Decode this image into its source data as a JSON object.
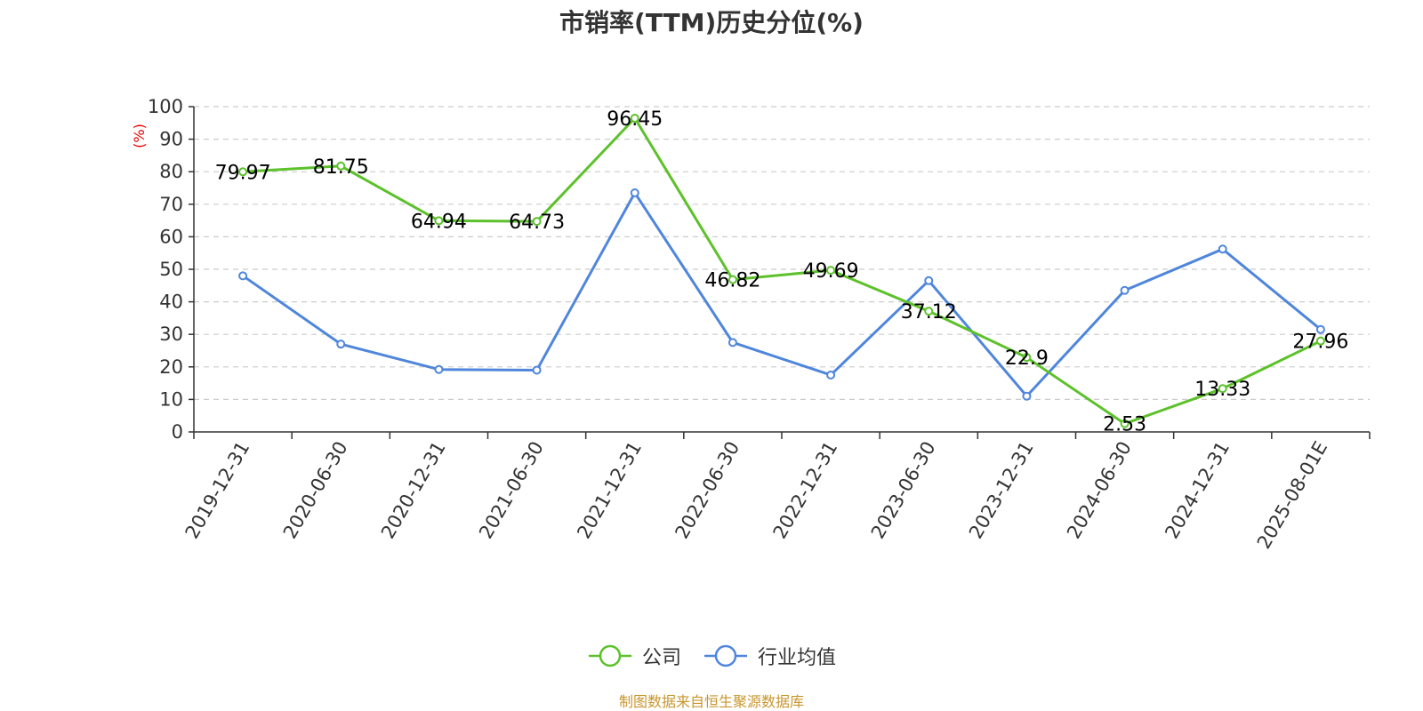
{
  "chart_data": {
    "type": "line",
    "title": "市销率(TTM)历史分位(%)",
    "ylabel": "(%)",
    "ylim": [
      0,
      100
    ],
    "yticks": [
      0,
      10,
      20,
      30,
      40,
      50,
      60,
      70,
      80,
      90,
      100
    ],
    "grid": true,
    "legend_position": "bottom",
    "categories": [
      "2019-12-31",
      "2020-06-30",
      "2020-12-31",
      "2021-06-30",
      "2021-12-31",
      "2022-06-30",
      "2022-12-31",
      "2023-06-30",
      "2023-12-31",
      "2024-06-30",
      "2024-12-31",
      "2025-08-01E"
    ],
    "series": [
      {
        "name": "公司",
        "color": "#5cc12a",
        "show_labels": true,
        "values": [
          79.97,
          81.75,
          64.94,
          64.73,
          96.45,
          46.82,
          49.69,
          37.12,
          22.9,
          2.53,
          13.33,
          27.96
        ]
      },
      {
        "name": "行业均值",
        "color": "#4f86dc",
        "show_labels": false,
        "values": [
          48,
          27,
          19.2,
          19,
          73.5,
          27.5,
          17.5,
          46.5,
          11,
          43.5,
          56.2,
          31.5
        ]
      }
    ],
    "source_note": "制图数据来自恒生聚源数据库"
  }
}
